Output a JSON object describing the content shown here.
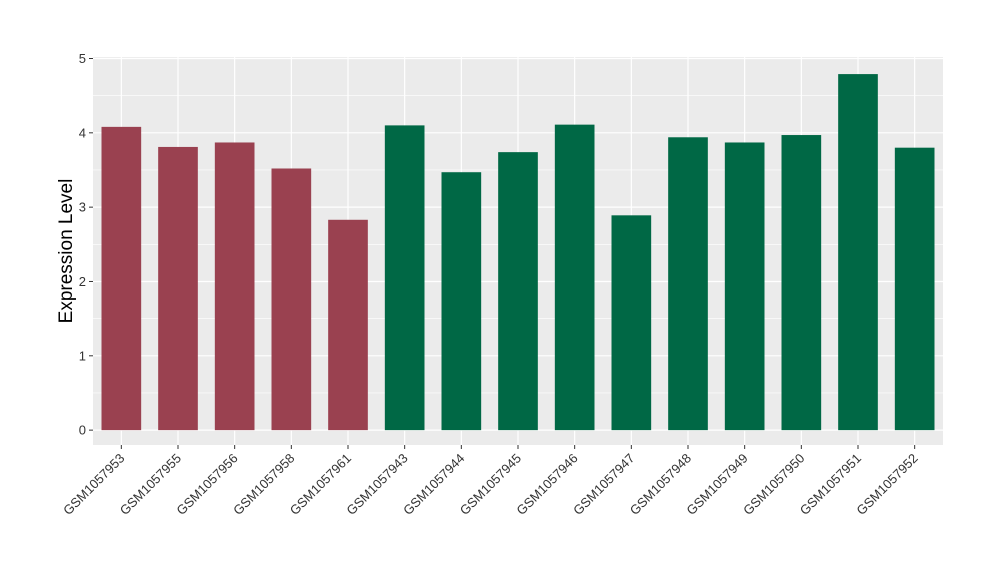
{
  "chart_data": {
    "type": "bar",
    "title": "",
    "xlabel": "",
    "ylabel": "Expression Level",
    "ylim": [
      -0.2,
      5.02
    ],
    "yticks": [
      0,
      1,
      2,
      3,
      4,
      5
    ],
    "grid": true,
    "legend": "none",
    "categories": [
      "GSM1057953",
      "GSM1057955",
      "GSM1057956",
      "GSM1057958",
      "GSM1057961",
      "GSM1057943",
      "GSM1057944",
      "GSM1057945",
      "GSM1057946",
      "GSM1057947",
      "GSM1057948",
      "GSM1057949",
      "GSM1057950",
      "GSM1057951",
      "GSM1057952"
    ],
    "values": [
      4.08,
      3.81,
      3.87,
      3.52,
      2.83,
      4.1,
      3.47,
      3.74,
      4.11,
      2.89,
      3.94,
      3.87,
      3.97,
      4.79,
      3.8
    ],
    "colors": [
      "#9a4150",
      "#9a4150",
      "#9a4150",
      "#9a4150",
      "#9a4150",
      "#006845",
      "#006845",
      "#006845",
      "#006845",
      "#006845",
      "#006845",
      "#006845",
      "#006845",
      "#006845",
      "#006845"
    ],
    "panel_background": "#ebebeb",
    "grid_color": "#ffffff"
  }
}
